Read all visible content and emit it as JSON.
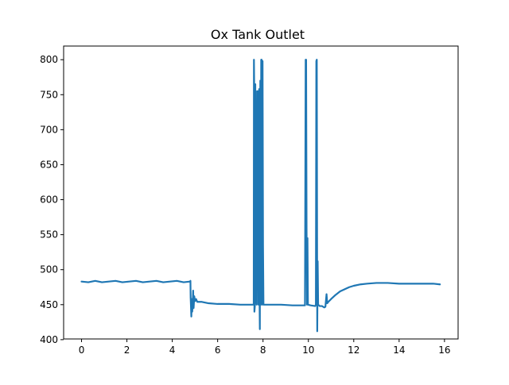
{
  "chart_data": {
    "type": "line",
    "title": "Ox Tank Outlet",
    "xlabel": "",
    "ylabel": "",
    "xlim": [
      -0.79,
      16.6
    ],
    "ylim": [
      401,
      819.5
    ],
    "xticks": [
      0,
      2,
      4,
      6,
      8,
      10,
      12,
      14,
      16
    ],
    "yticks": [
      400,
      450,
      500,
      550,
      600,
      650,
      700,
      750,
      800
    ],
    "grid": false,
    "legend": "none",
    "series": [
      {
        "color": "#1f77b4",
        "points": [
          [
            0.0,
            483
          ],
          [
            0.3,
            482
          ],
          [
            0.6,
            484
          ],
          [
            0.9,
            482
          ],
          [
            1.2,
            483
          ],
          [
            1.5,
            484
          ],
          [
            1.8,
            482
          ],
          [
            2.1,
            483
          ],
          [
            2.4,
            484
          ],
          [
            2.7,
            482
          ],
          [
            3.0,
            483
          ],
          [
            3.3,
            484
          ],
          [
            3.6,
            482
          ],
          [
            3.9,
            483
          ],
          [
            4.2,
            484
          ],
          [
            4.5,
            482
          ],
          [
            4.78,
            483
          ],
          [
            4.8,
            484
          ],
          [
            4.81,
            460
          ],
          [
            4.84,
            433
          ],
          [
            4.86,
            458
          ],
          [
            4.88,
            440
          ],
          [
            4.9,
            452
          ],
          [
            4.92,
            470
          ],
          [
            4.94,
            445
          ],
          [
            4.97,
            462
          ],
          [
            5.0,
            455
          ],
          [
            5.05,
            458
          ],
          [
            5.1,
            454
          ],
          [
            5.3,
            454
          ],
          [
            5.6,
            452
          ],
          [
            6.0,
            451
          ],
          [
            6.5,
            451
          ],
          [
            7.0,
            450
          ],
          [
            7.5,
            450
          ],
          [
            7.59,
            450
          ],
          [
            7.6,
            800
          ],
          [
            7.61,
            765
          ],
          [
            7.62,
            440
          ],
          [
            7.64,
            448
          ],
          [
            7.66,
            765
          ],
          [
            7.68,
            500
          ],
          [
            7.72,
            450
          ],
          [
            7.74,
            755
          ],
          [
            7.76,
            560
          ],
          [
            7.78,
            755
          ],
          [
            7.8,
            450
          ],
          [
            7.83,
            758
          ],
          [
            7.85,
            450
          ],
          [
            7.86,
            415
          ],
          [
            7.88,
            770
          ],
          [
            7.9,
            450
          ],
          [
            7.92,
            800
          ],
          [
            7.94,
            800
          ],
          [
            7.96,
            450
          ],
          [
            7.98,
            798
          ],
          [
            8.0,
            535
          ],
          [
            8.02,
            450
          ],
          [
            8.3,
            450
          ],
          [
            8.8,
            450
          ],
          [
            9.3,
            449
          ],
          [
            9.85,
            449
          ],
          [
            9.88,
            800
          ],
          [
            9.9,
            800
          ],
          [
            9.92,
            560
          ],
          [
            9.94,
            450
          ],
          [
            9.96,
            545
          ],
          [
            9.98,
            450
          ],
          [
            10.1,
            449
          ],
          [
            10.3,
            448
          ],
          [
            10.33,
            450
          ],
          [
            10.35,
            798
          ],
          [
            10.37,
            800
          ],
          [
            10.39,
            412
          ],
          [
            10.41,
            512
          ],
          [
            10.43,
            450
          ],
          [
            10.5,
            448
          ],
          [
            10.6,
            448
          ],
          [
            10.7,
            446
          ],
          [
            10.75,
            447
          ],
          [
            10.8,
            465
          ],
          [
            10.83,
            452
          ],
          [
            10.88,
            454
          ],
          [
            11.0,
            458
          ],
          [
            11.2,
            464
          ],
          [
            11.4,
            469
          ],
          [
            11.6,
            472
          ],
          [
            11.8,
            475
          ],
          [
            12.0,
            477
          ],
          [
            12.3,
            479
          ],
          [
            12.6,
            480
          ],
          [
            13.0,
            481
          ],
          [
            13.5,
            481
          ],
          [
            14.0,
            480
          ],
          [
            14.5,
            480
          ],
          [
            15.0,
            480
          ],
          [
            15.5,
            480
          ],
          [
            15.8,
            479
          ]
        ]
      }
    ]
  }
}
